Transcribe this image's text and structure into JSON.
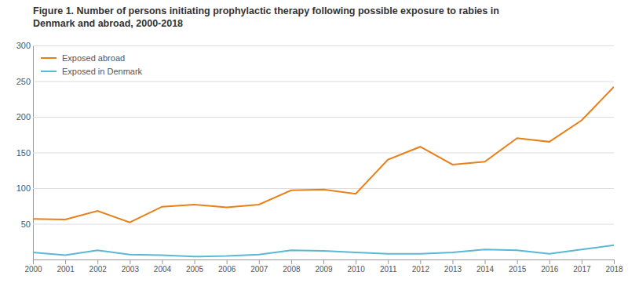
{
  "chart_data": {
    "type": "line",
    "title": "Figure 1. Number of persons initiating prophylactic therapy following possible exposure to rabies in\nDenmark and abroad, 2000-2018",
    "x": [
      2000,
      2001,
      2002,
      2003,
      2004,
      2005,
      2006,
      2007,
      2008,
      2009,
      2010,
      2011,
      2012,
      2013,
      2014,
      2015,
      2016,
      2017,
      2018
    ],
    "series": [
      {
        "name": "Exposed abroad",
        "color": "#E8801A",
        "values": [
          57,
          56,
          68,
          52,
          74,
          77,
          73,
          77,
          97,
          98,
          92,
          140,
          158,
          133,
          137,
          170,
          165,
          195,
          242
        ]
      },
      {
        "name": "Exposed in Denmark",
        "color": "#5BB8D4",
        "values": [
          10,
          6,
          13,
          7,
          6,
          4,
          5,
          7,
          13,
          12,
          10,
          8,
          8,
          10,
          14,
          13,
          8,
          14,
          20
        ]
      }
    ],
    "xlim": [
      2000,
      2018
    ],
    "xticks": [
      2000,
      2001,
      2002,
      2003,
      2004,
      2005,
      2006,
      2007,
      2008,
      2009,
      2010,
      2011,
      2012,
      2013,
      2014,
      2015,
      2016,
      2017,
      2018
    ],
    "ylim": [
      0,
      300
    ],
    "yticks": [
      50,
      100,
      150,
      200,
      250,
      300
    ],
    "grid": true,
    "legend": "upper left"
  }
}
